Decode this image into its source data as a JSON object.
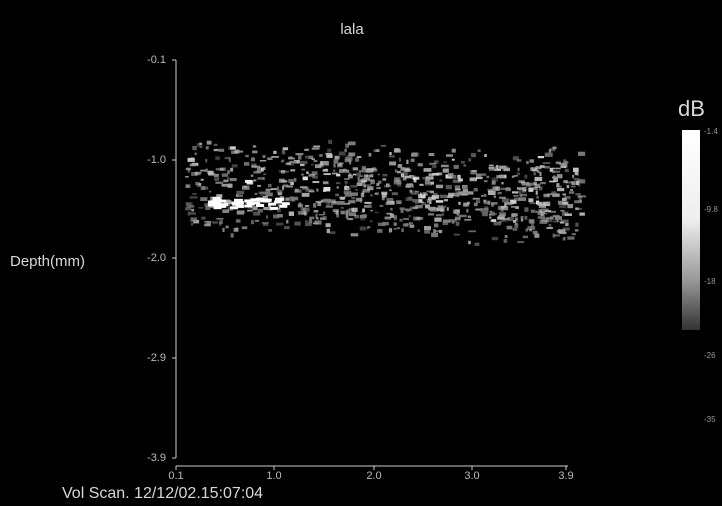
{
  "header": {
    "title": "lala"
  },
  "axes": {
    "y_label": "Depth(mm)",
    "y_ticks": [
      "-0.1",
      "-1.0",
      "-2.0",
      "-2.9",
      "-3.9"
    ],
    "x_ticks": [
      "0.1",
      "1.0",
      "2.0",
      "3.0",
      "3.9"
    ]
  },
  "colorbar": {
    "label": "dB",
    "ticks": [
      "-1.4",
      "-9.8",
      "-18",
      "-26",
      "-35"
    ]
  },
  "status": "Vol Scan. 12/12/02.15:07:04"
}
